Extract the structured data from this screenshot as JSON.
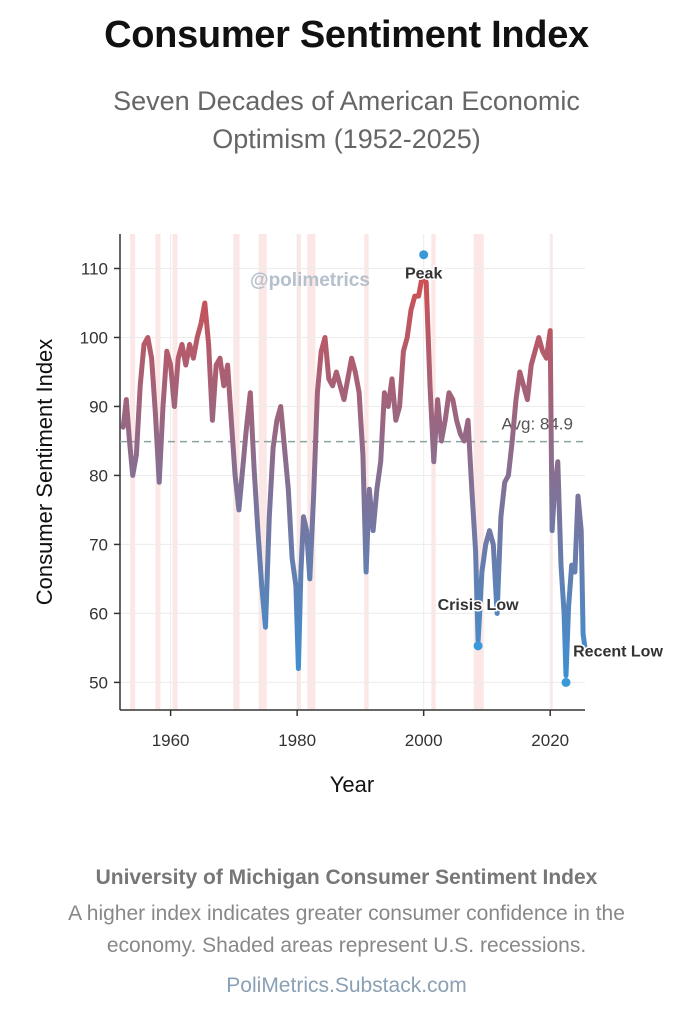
{
  "header": {
    "title": "Consumer Sentiment Index",
    "subtitle": "Seven Decades of American Economic Optimism (1952-2025)"
  },
  "chart_data": {
    "type": "line",
    "xlabel": "Year",
    "ylabel": "Consumer Sentiment Index",
    "xlim": [
      1952,
      2025.5
    ],
    "ylim": [
      46,
      115
    ],
    "x_ticks": [
      "1960",
      "1980",
      "2000",
      "2020"
    ],
    "x_tick_values": [
      1960,
      1980,
      2000,
      2020
    ],
    "y_ticks": [
      "50",
      "60",
      "70",
      "80",
      "90",
      "100",
      "110"
    ],
    "y_tick_values": [
      50,
      60,
      70,
      80,
      90,
      100,
      110
    ],
    "grid": true,
    "watermark": "@polimetrics",
    "average": {
      "value": 84.9,
      "label": "Avg: 84.9"
    },
    "recessions": [
      [
        1953.6,
        1954.4
      ],
      [
        1957.6,
        1958.4
      ],
      [
        1960.3,
        1961.1
      ],
      [
        1969.9,
        1970.9
      ],
      [
        1973.9,
        1975.2
      ],
      [
        1980.0,
        1980.6
      ],
      [
        1981.6,
        1982.9
      ],
      [
        1990.6,
        1991.3
      ],
      [
        2001.2,
        2001.9
      ],
      [
        2007.9,
        2009.5
      ],
      [
        2020.1,
        2020.4
      ]
    ],
    "line_color_high": "#d84b4b",
    "line_color_low": "#3f8fd0",
    "marker_color": "#3a9ad9",
    "series": [
      {
        "x": [
          1952.5,
          1953,
          1953.5,
          1954,
          1954.6,
          1955.2,
          1955.8,
          1956.4,
          1957,
          1957.6,
          1958.2,
          1958.8,
          1959.4,
          1960,
          1960.6,
          1961.2,
          1961.8,
          1962.4,
          1963,
          1963.6,
          1964.2,
          1964.8,
          1965.4,
          1966,
          1966.6,
          1967.2,
          1967.8,
          1968.4,
          1969,
          1969.6,
          1970.2,
          1970.8,
          1971.4,
          1972,
          1972.6,
          1973.2,
          1973.8,
          1974.4,
          1975,
          1975.6,
          1976.2,
          1976.8,
          1977.4,
          1978,
          1978.6,
          1979.2,
          1979.8,
          1980.2,
          1980.6,
          1981,
          1981.5,
          1982,
          1982.6,
          1983.2,
          1983.8,
          1984.4,
          1985,
          1985.6,
          1986.2,
          1986.8,
          1987.4,
          1988,
          1988.6,
          1989.2,
          1989.8,
          1990.4,
          1990.9,
          1991.4,
          1992,
          1992.6,
          1993.2,
          1993.8,
          1994.4,
          1995,
          1995.6,
          1996.2,
          1996.8,
          1997.4,
          1998,
          1998.6,
          1999.2,
          1999.8,
          2000.4,
          2001,
          2001.6,
          2002.2,
          2002.8,
          2003.4,
          2004,
          2004.6,
          2005.2,
          2005.8,
          2006.4,
          2007,
          2007.6,
          2008.2,
          2008.6,
          2009.2,
          2009.8,
          2010.4,
          2011,
          2011.6,
          2012.2,
          2012.8,
          2013.4,
          2014,
          2014.6,
          2015.2,
          2015.8,
          2016.4,
          2017,
          2017.6,
          2018.2,
          2018.8,
          2019.4,
          2020,
          2020.3,
          2020.7,
          2021.2,
          2021.7,
          2022.2,
          2022.5,
          2022.9,
          2023.4,
          2023.9,
          2024.4,
          2024.9,
          2025.2,
          2025.5
        ],
        "values": [
          87,
          91,
          85,
          80,
          83,
          93,
          99,
          100,
          97,
          89,
          79,
          90,
          98,
          96,
          90,
          97,
          99,
          96,
          99,
          97,
          100,
          102,
          105,
          99,
          88,
          96,
          97,
          93,
          96,
          88,
          80,
          75,
          81,
          87,
          92,
          81,
          72,
          64,
          58,
          74,
          84,
          88,
          90,
          84,
          78,
          68,
          64,
          52,
          66,
          74,
          72,
          65,
          77,
          92,
          98,
          100,
          94,
          93,
          95,
          93,
          91,
          94,
          97,
          95,
          92,
          83,
          66,
          78,
          72,
          78,
          82,
          92,
          90,
          94,
          88,
          90,
          98,
          100,
          104,
          106,
          106,
          109,
          108,
          93,
          82,
          91,
          85,
          88,
          92,
          91,
          88,
          86,
          85,
          88,
          78,
          69,
          56,
          66,
          70,
          72,
          70,
          60,
          74,
          79,
          80,
          85,
          91,
          95,
          93,
          91,
          96,
          98,
          100,
          98,
          97,
          101,
          72,
          78,
          82,
          67,
          60,
          51,
          61,
          67,
          66,
          77,
          72,
          57,
          55
        ]
      }
    ],
    "annotations": [
      {
        "label": "Peak",
        "x": 2000,
        "y": 112
      },
      {
        "label": "Crisis Low",
        "x": 2008.6,
        "y": 55.3
      },
      {
        "label": "Recent Low",
        "x": 2022.5,
        "y": 50
      }
    ]
  },
  "caption": {
    "bold": "University of Michigan Consumer Sentiment Index",
    "text": "A higher index indicates greater consumer confidence in the economy. Shaded areas represent U.S. recessions."
  },
  "footer": {
    "source": "PoliMetrics.Substack.com"
  }
}
